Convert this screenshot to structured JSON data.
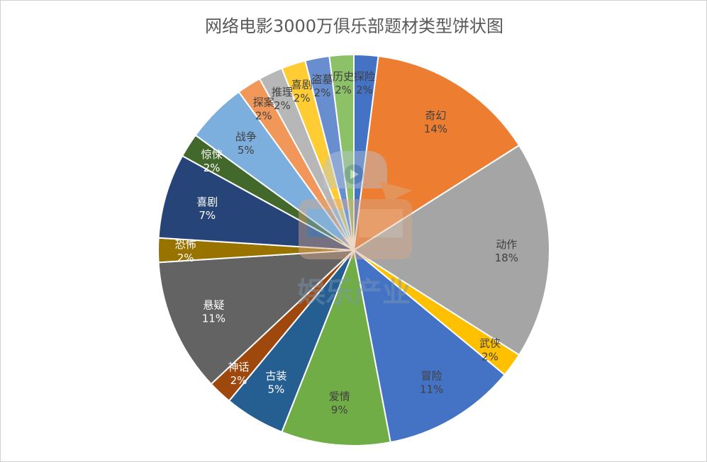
{
  "chart_data": {
    "type": "pie",
    "title": "网络电影3000万俱乐部题材类型饼状图",
    "start": "12 o'clock, clockwise",
    "slices": [
      {
        "label": "探险",
        "value": 2,
        "display": "2%",
        "color": "#4472c4"
      },
      {
        "label": "奇幻",
        "value": 14,
        "display": "14%",
        "color": "#ed7d31"
      },
      {
        "label": "动作",
        "value": 18,
        "display": "18%",
        "color": "#a5a5a5"
      },
      {
        "label": "武侠",
        "value": 2,
        "display": "2%",
        "color": "#ffc000"
      },
      {
        "label": "冒险",
        "value": 11,
        "display": "11%",
        "color": "#4472c4"
      },
      {
        "label": "爱情",
        "value": 9,
        "display": "9%",
        "color": "#70ad47"
      },
      {
        "label": "古装",
        "value": 5,
        "display": "5%",
        "color": "#255e91"
      },
      {
        "label": "神话",
        "value": 2,
        "display": "2%",
        "color": "#9e480e"
      },
      {
        "label": "悬疑",
        "value": 11,
        "display": "11%",
        "color": "#636363"
      },
      {
        "label": "恐怖",
        "value": 2,
        "display": "2%",
        "color": "#997300"
      },
      {
        "label": "喜剧",
        "value": 7,
        "display": "7%",
        "color": "#264478"
      },
      {
        "label": "惊悚",
        "value": 2,
        "display": "2%",
        "color": "#43682b"
      },
      {
        "label": "战争",
        "value": 5,
        "display": "5%",
        "color": "#7cafdd"
      },
      {
        "label": "探案",
        "value": 2,
        "display": "2%",
        "color": "#f1975a"
      },
      {
        "label": "推理",
        "value": 2,
        "display": "2%",
        "color": "#b7b7b7"
      },
      {
        "label": "喜剧",
        "value": 2,
        "display": "2%",
        "color": "#ffcd33"
      },
      {
        "label": "盗墓",
        "value": 2,
        "display": "2%",
        "color": "#698ed0"
      },
      {
        "label": "历史",
        "value": 2,
        "display": "2%",
        "color": "#8cc168"
      }
    ]
  },
  "watermark": {
    "text": "娱乐产业"
  }
}
